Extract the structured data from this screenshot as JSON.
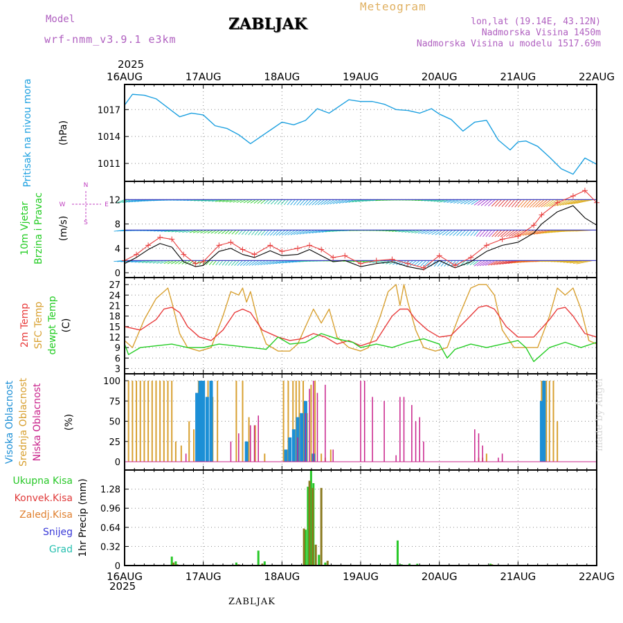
{
  "header": {
    "model_label": "Model",
    "model_name": "wrf-nmm_v3.9.1 e3km",
    "station": "ZABLJAK",
    "meteogram": "Meteogram",
    "lonlat": "lon,lat (19.14E, 43.12N)",
    "altitude": "Nadmorska Visina 1450m",
    "model_altitude": "Nadmorska Visina u modelu 1517.69m",
    "footer_station": "ZABLJAK",
    "credit": "made by Angel",
    "year": "2025"
  },
  "colors": {
    "pressure": "#1ca0e0",
    "wind": "#22cc22",
    "windunit": "#c040c0",
    "temp2m": "#e83a3a",
    "sfc": "#d8a030",
    "dew": "#22cc22",
    "high_cloud": "#1c8fd6",
    "mid_cloud": "#d8a030",
    "low_cloud": "#c8208a",
    "total_rain": "#28c828",
    "conv_rain": "#e03a3a",
    "frz_rain": "#e08030",
    "snow": "#3838d8",
    "hail": "#28c0b0",
    "title": "#000000",
    "model": "#b060c0",
    "meteogram": "#e0b060"
  },
  "chart_data": [
    {
      "type": "line",
      "panel": "pressure",
      "title": "Pritisak na nivou mora",
      "ylabel": "(hPa)",
      "ylim": [
        1009,
        1019.8
      ],
      "yticks": [
        1011,
        1014,
        1017
      ],
      "x_days": [
        0,
        0.1,
        0.25,
        0.4,
        0.55,
        0.7,
        0.85,
        1,
        1.15,
        1.3,
        1.45,
        1.6,
        1.7,
        1.85,
        2,
        2.15,
        2.3,
        2.45,
        2.6,
        2.75,
        2.85,
        3,
        3.15,
        3.3,
        3.45,
        3.6,
        3.75,
        3.9,
        4,
        4.15,
        4.3,
        4.45,
        4.6,
        4.75,
        4.9,
        5,
        5.1,
        5.25,
        5.4,
        5.55,
        5.7,
        5.85,
        6
      ],
      "values": [
        1017.5,
        1018.7,
        1018.6,
        1018.2,
        1017.2,
        1016.2,
        1016.6,
        1016.4,
        1015.2,
        1014.9,
        1014.2,
        1013.2,
        1013.8,
        1014.7,
        1015.6,
        1015.3,
        1015.8,
        1017.1,
        1016.6,
        1017.5,
        1018.1,
        1017.9,
        1017.9,
        1017.6,
        1017.0,
        1016.9,
        1016.6,
        1017.1,
        1016.5,
        1015.9,
        1014.6,
        1015.6,
        1015.8,
        1013.6,
        1012.5,
        1013.4,
        1013.5,
        1012.9,
        1011.7,
        1010.4,
        1009.8,
        1011.6,
        1010.9
      ]
    },
    {
      "type": "line",
      "panel": "wind",
      "title": "10m Vjetar",
      "subtitle": "Brzina i Pravac",
      "ylabel": "(m/s)",
      "direction_legend": [
        "N",
        "W",
        "E",
        "S"
      ],
      "ylim": [
        -0.8,
        15
      ],
      "yticks": [
        0,
        4,
        8,
        12
      ],
      "barb_rows": [
        12,
        7,
        2
      ],
      "series": [
        {
          "name": "Udar (gust)",
          "color": "#e83a3a",
          "x_days": [
            0,
            0.15,
            0.3,
            0.45,
            0.6,
            0.75,
            0.9,
            1.0,
            1.2,
            1.35,
            1.5,
            1.65,
            1.85,
            2.0,
            2.2,
            2.35,
            2.5,
            2.65,
            2.8,
            3.0,
            3.2,
            3.4,
            3.6,
            3.8,
            4.0,
            4.2,
            4.4,
            4.6,
            4.8,
            5.0,
            5.2,
            5.3,
            5.5,
            5.7,
            5.85,
            6.0
          ],
          "values": [
            2.0,
            3.0,
            4.5,
            5.8,
            5.5,
            3.0,
            1.5,
            1.8,
            4.5,
            5.0,
            3.8,
            3.0,
            4.5,
            3.5,
            4.0,
            4.5,
            3.8,
            2.5,
            2.8,
            1.5,
            2.0,
            2.2,
            1.5,
            0.8,
            2.8,
            1.2,
            2.5,
            4.5,
            5.5,
            6.0,
            7.8,
            9.5,
            11.5,
            12.6,
            13.5,
            11.5
          ]
        },
        {
          "name": "Brzina (speed)",
          "color": "#000000",
          "x_days": [
            0,
            0.15,
            0.3,
            0.45,
            0.6,
            0.75,
            0.9,
            1.0,
            1.2,
            1.35,
            1.5,
            1.65,
            1.85,
            2.0,
            2.2,
            2.35,
            2.5,
            2.65,
            2.8,
            3.0,
            3.2,
            3.4,
            3.6,
            3.8,
            4.0,
            4.2,
            4.4,
            4.6,
            4.8,
            5.0,
            5.2,
            5.3,
            5.5,
            5.7,
            5.85,
            6.0
          ],
          "values": [
            1.5,
            2.5,
            3.8,
            4.8,
            4.2,
            1.8,
            1.0,
            1.2,
            3.5,
            4.0,
            3.0,
            2.5,
            3.6,
            2.8,
            3.0,
            3.8,
            2.8,
            1.8,
            2.0,
            1.0,
            1.5,
            1.8,
            1.0,
            0.5,
            2.0,
            0.8,
            1.8,
            3.5,
            4.5,
            5.0,
            6.5,
            8.0,
            10.0,
            11.0,
            9.0,
            7.8
          ]
        }
      ]
    },
    {
      "type": "line",
      "panel": "temperature",
      "title": "2m Temp",
      "title2": "SFC Temp",
      "title3": "dewpt Temp",
      "ylabel": "(C)",
      "ylim": [
        1.5,
        29
      ],
      "yticks": [
        3,
        6,
        9,
        12,
        15,
        18,
        21,
        24,
        27
      ],
      "series": [
        {
          "name": "2m Temp",
          "color": "#e83a3a",
          "x_days": [
            0,
            0.2,
            0.4,
            0.5,
            0.6,
            0.7,
            0.8,
            0.95,
            1.1,
            1.25,
            1.4,
            1.5,
            1.6,
            1.75,
            1.95,
            2.1,
            2.25,
            2.4,
            2.55,
            2.7,
            2.85,
            3,
            3.2,
            3.4,
            3.5,
            3.6,
            3.7,
            3.85,
            4,
            4.15,
            4.35,
            4.5,
            4.6,
            4.7,
            4.85,
            5,
            5.2,
            5.4,
            5.5,
            5.6,
            5.7,
            5.85,
            6
          ],
          "values": [
            15,
            14,
            17,
            20,
            20.5,
            19,
            15,
            12,
            11,
            14,
            19,
            20,
            19,
            14,
            12,
            11,
            11.5,
            13,
            12,
            10,
            11,
            9.5,
            11,
            18,
            20,
            20,
            17,
            14,
            12,
            12.5,
            17,
            20.5,
            21,
            20,
            15,
            12,
            12,
            17,
            20,
            20.5,
            18,
            13,
            12
          ]
        },
        {
          "name": "SFC Temp",
          "color": "#d8a030",
          "x_days": [
            0,
            0.1,
            0.25,
            0.4,
            0.5,
            0.55,
            0.6,
            0.7,
            0.8,
            0.95,
            1.1,
            1.25,
            1.35,
            1.45,
            1.5,
            1.55,
            1.6,
            1.7,
            1.8,
            1.95,
            2.1,
            2.2,
            2.3,
            2.4,
            2.5,
            2.6,
            2.7,
            2.85,
            3,
            3.1,
            3.25,
            3.35,
            3.45,
            3.5,
            3.55,
            3.6,
            3.7,
            3.8,
            3.95,
            4.1,
            4.25,
            4.4,
            4.5,
            4.6,
            4.7,
            4.8,
            4.95,
            5.1,
            5.25,
            5.4,
            5.5,
            5.6,
            5.7,
            5.8,
            5.9,
            6
          ],
          "values": [
            11,
            9,
            17,
            23,
            25,
            26,
            22,
            13,
            9,
            8,
            9,
            18,
            25,
            24,
            26,
            22,
            25,
            16,
            10,
            8,
            8,
            10,
            15,
            20,
            16,
            20,
            12,
            9,
            8,
            9,
            18,
            25,
            27,
            21,
            27,
            22,
            14,
            9,
            8,
            9,
            18,
            26,
            27,
            27,
            24,
            14,
            9,
            9,
            9,
            18,
            26,
            24,
            26,
            20,
            11,
            10
          ]
        },
        {
          "name": "dewpt Temp",
          "color": "#22cc22",
          "x_days": [
            0,
            0.05,
            0.2,
            0.4,
            0.6,
            0.8,
            1.0,
            1.2,
            1.4,
            1.6,
            1.8,
            1.95,
            2.1,
            2.3,
            2.5,
            2.7,
            2.9,
            3.0,
            3.2,
            3.4,
            3.6,
            3.8,
            4.0,
            4.1,
            4.2,
            4.4,
            4.6,
            4.8,
            5.0,
            5.1,
            5.2,
            5.4,
            5.6,
            5.8,
            6.0
          ],
          "values": [
            10,
            7,
            9,
            9.5,
            10,
            9,
            9,
            10,
            9.5,
            9,
            8.5,
            12,
            10,
            10.5,
            13,
            11.5,
            10.5,
            9,
            10,
            9,
            10.5,
            11.5,
            10,
            6,
            8.5,
            10,
            9,
            10,
            11,
            9,
            5,
            9,
            10.5,
            9,
            10.5
          ]
        }
      ]
    },
    {
      "type": "bar",
      "panel": "clouds",
      "title": "Visoka Oblacnost",
      "title2": "Srednja Oblacnost",
      "title3": "Niska Oblacnost",
      "ylabel": "(%)",
      "ylim": [
        0,
        100
      ],
      "yticks": [
        0,
        25,
        50,
        75,
        100
      ],
      "series": [
        {
          "name": "Visoka Oblacnost",
          "color": "#1c8fd6",
          "x_days": [
            0.92,
            0.96,
            1.0,
            1.05,
            1.1,
            1.55,
            2.05,
            2.1,
            2.15,
            2.2,
            2.25,
            2.3,
            2.4,
            5.3,
            5.33
          ],
          "values": [
            85,
            100,
            100,
            80,
            100,
            25,
            15,
            30,
            40,
            55,
            60,
            75,
            10,
            75,
            100
          ]
        },
        {
          "name": "Srednja Oblacnost",
          "color": "#d8a030",
          "x_days": [
            0.05,
            0.1,
            0.15,
            0.2,
            0.25,
            0.3,
            0.35,
            0.4,
            0.45,
            0.5,
            0.55,
            0.6,
            0.65,
            0.72,
            0.82,
            0.88,
            0.94,
            1.0,
            1.06,
            1.12,
            1.18,
            1.42,
            1.5,
            1.58,
            1.66,
            1.78,
            2.02,
            2.08,
            2.14,
            2.18,
            2.22,
            2.27,
            2.32,
            2.37,
            2.42,
            2.5,
            2.55,
            2.62,
            4.5,
            4.55,
            4.6,
            5.3,
            5.36,
            5.4,
            5.45,
            5.5
          ],
          "values": [
            100,
            100,
            100,
            100,
            100,
            100,
            100,
            100,
            100,
            100,
            100,
            100,
            25,
            20,
            50,
            40,
            100,
            100,
            100,
            80,
            100,
            100,
            100,
            55,
            45,
            10,
            100,
            100,
            100,
            100,
            100,
            100,
            60,
            95,
            100,
            10,
            5,
            15,
            5,
            5,
            10,
            100,
            100,
            100,
            100,
            50
          ]
        },
        {
          "name": "Niska Oblacnost",
          "color": "#c8208a",
          "x_days": [
            0.78,
            1.35,
            1.45,
            1.6,
            1.65,
            1.7,
            2.2,
            2.3,
            2.35,
            2.4,
            2.45,
            2.55,
            2.65,
            3.0,
            3.05,
            3.15,
            3.3,
            3.45,
            3.5,
            3.55,
            3.65,
            3.7,
            3.75,
            3.8,
            4.45,
            4.5,
            4.55,
            4.75,
            4.8
          ],
          "values": [
            10,
            25,
            35,
            45,
            45,
            57,
            30,
            60,
            90,
            100,
            85,
            95,
            15,
            100,
            100,
            80,
            75,
            8,
            80,
            80,
            70,
            50,
            55,
            25,
            40,
            35,
            20,
            5,
            10
          ]
        }
      ]
    },
    {
      "type": "bar",
      "panel": "precipitation",
      "title_labels": [
        "Ukupna Kisa",
        "Konvek.Kisa",
        "Zaledj.Kisa",
        "Snijeg",
        "Grad"
      ],
      "ylabel": "1hr Precip (mm)",
      "ylim": [
        0,
        1.6
      ],
      "yticks": [
        0.32,
        0.64,
        0.96,
        1.28
      ],
      "series": [
        {
          "name": "Ukupna Kisa",
          "color": "#28c828",
          "x_days": [
            0.6,
            0.65,
            1.42,
            1.7,
            1.78,
            2.3,
            2.33,
            2.37,
            2.4,
            2.47,
            2.55,
            3.47,
            3.52,
            3.62,
            3.72,
            4.65
          ],
          "values": [
            0.15,
            0.07,
            0.05,
            0.25,
            0.07,
            0.6,
            1.32,
            1.6,
            1.38,
            0.18,
            0.05,
            0.42,
            0.02,
            0.03,
            0.03,
            0.03
          ]
        },
        {
          "name": "Zaledj.Kisa",
          "color": "#8a7a20",
          "x_days": [
            0.62,
            0.67,
            1.45,
            1.75,
            2.28,
            2.35,
            2.39,
            2.43,
            2.5,
            2.58,
            4.67
          ],
          "values": [
            0.05,
            0.02,
            0.02,
            0.03,
            0.62,
            1.42,
            1.3,
            0.35,
            1.3,
            0.08,
            0.02
          ]
        }
      ]
    }
  ],
  "x_axis": {
    "days": [
      "16AUG",
      "17AUG",
      "18AUG",
      "19AUG",
      "20AUG",
      "21AUG",
      "22AUG"
    ]
  }
}
